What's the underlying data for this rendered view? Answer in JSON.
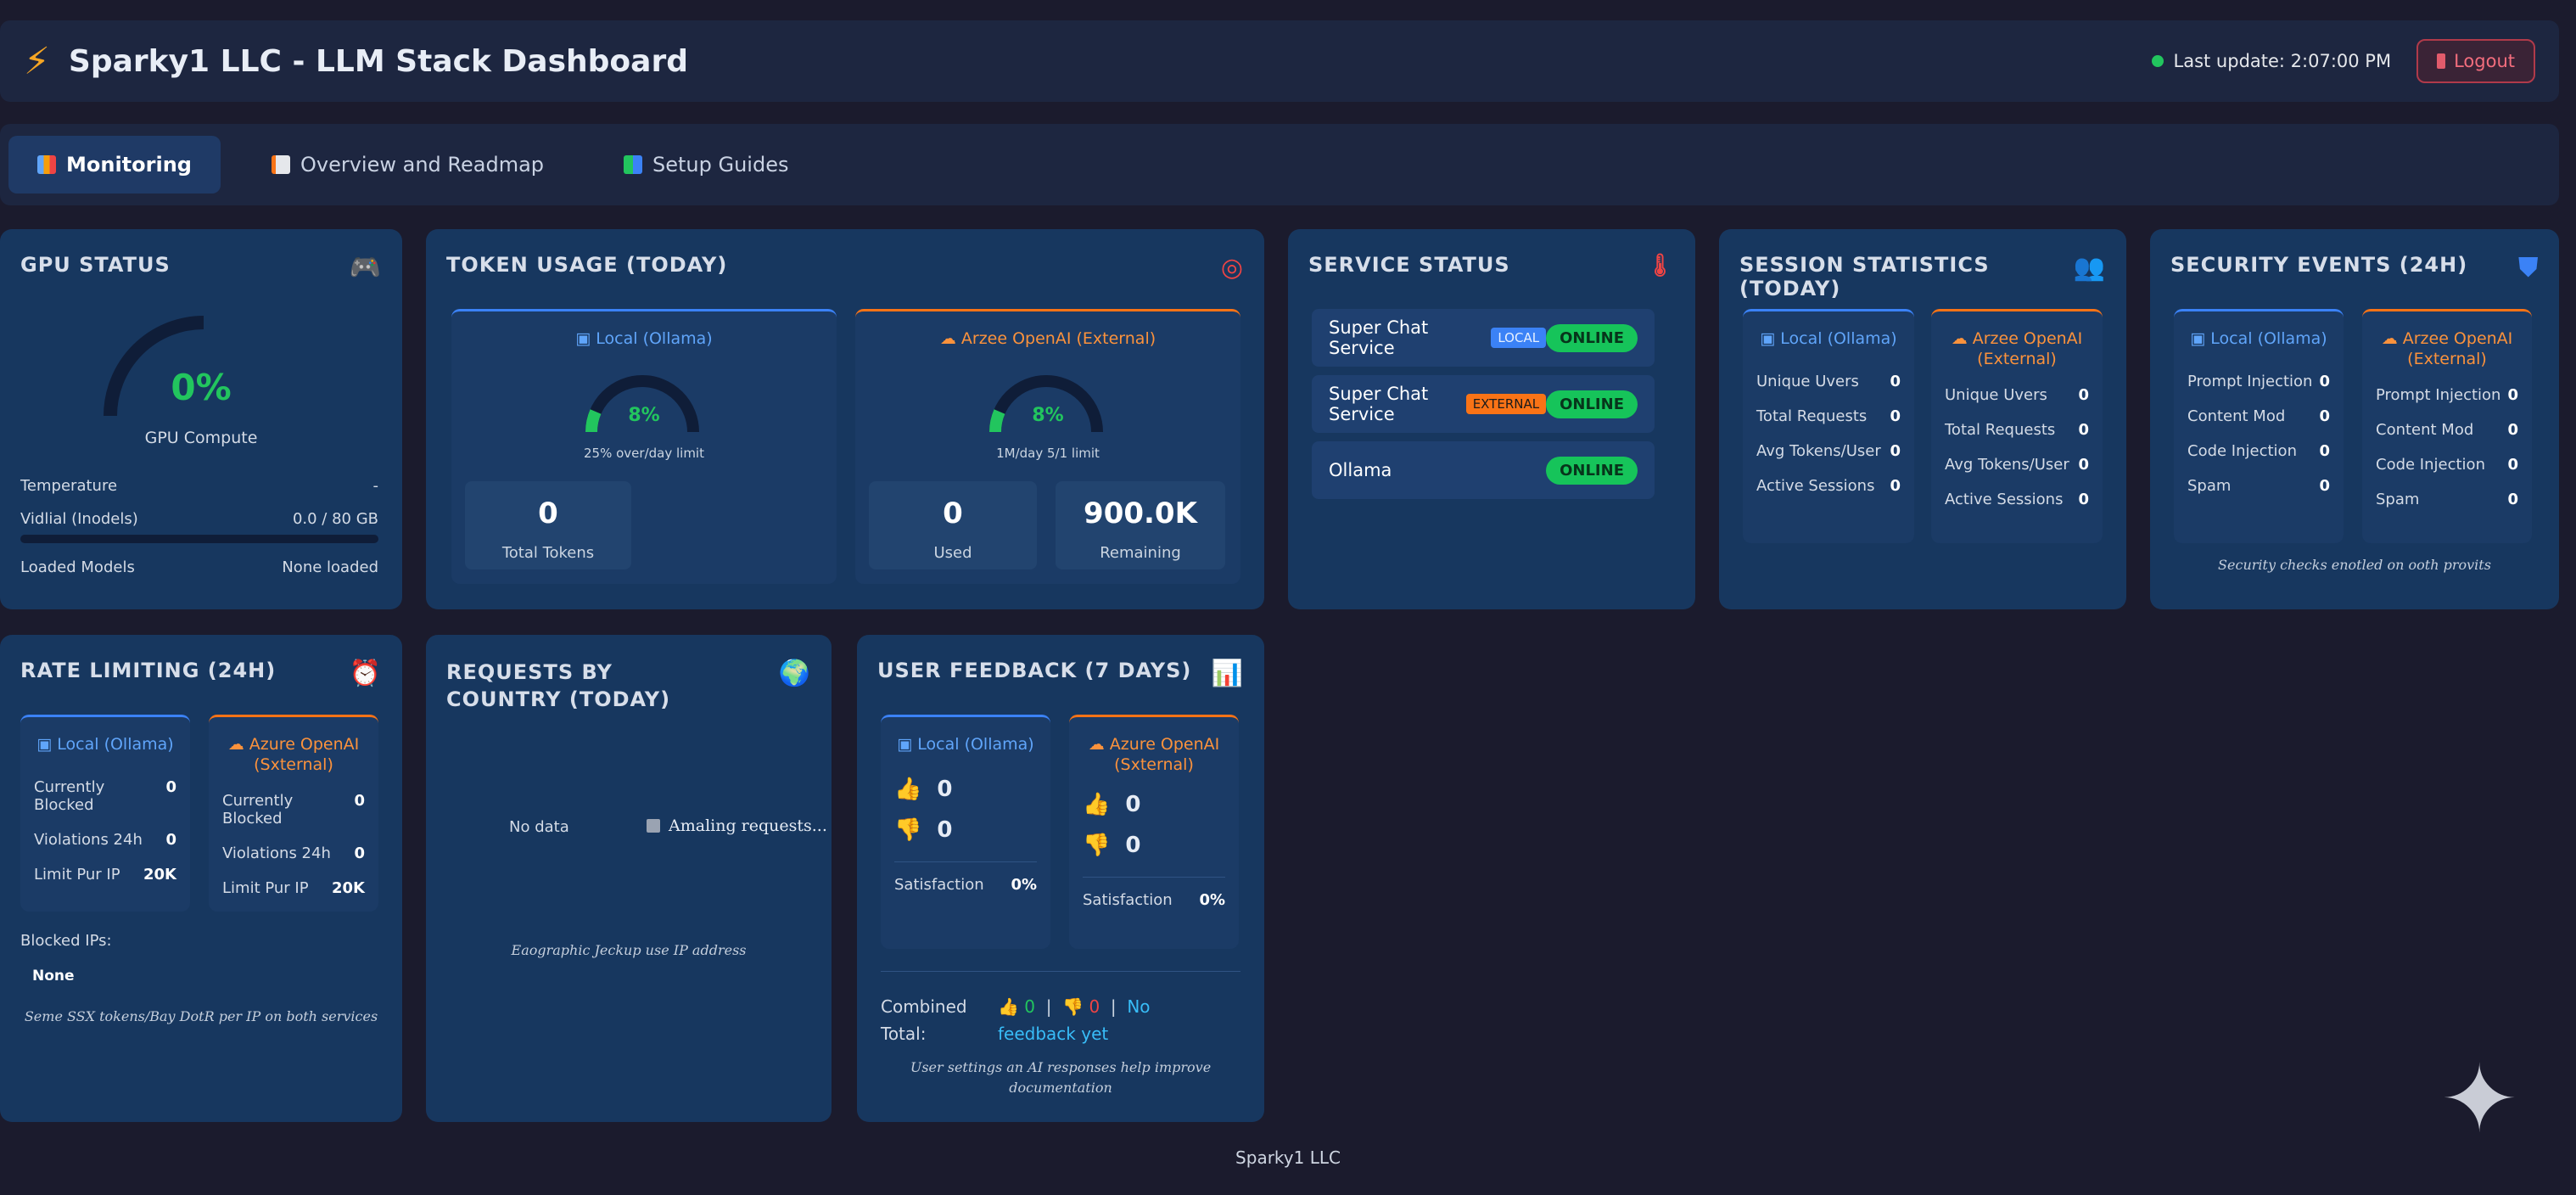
{
  "header": {
    "title": "Sparky1 LLC - LLM Stack Dashboard",
    "last_update": "Last update: 2:07:00 PM",
    "logout_label": "Logout"
  },
  "tabs": [
    {
      "label": "Monitoring",
      "icon": "chart-icon"
    },
    {
      "label": "Overview and Readmap",
      "icon": "document-icon"
    },
    {
      "label": "Setup Guides",
      "icon": "books-icon"
    }
  ],
  "gpu": {
    "title": "GPU STATUS",
    "value": "0%",
    "caption": "GPU Compute",
    "rows": [
      {
        "label": "Temperature",
        "value": "-"
      },
      {
        "label": "Vidlial (Inodels)",
        "value": "0.0 / 80 GB"
      },
      {
        "label": "Loaded Models",
        "value": "None loaded"
      }
    ],
    "vram_fraction": 0.0
  },
  "tokens": {
    "title": "TOKEN USAGE (TODAY)",
    "local": {
      "head": "Local (Ollama)",
      "gauge": "8%",
      "limit": "25% over/day limit",
      "total_value": "0",
      "total_label": "Total Tokens"
    },
    "external": {
      "head": "Arzee OpenAI (External)",
      "gauge": "8%",
      "limit": "1M/day 5/1 limit",
      "used_value": "0",
      "used_label": "Used",
      "remaining_value": "900.0K",
      "remaining_label": "Remaining"
    }
  },
  "service": {
    "title": "SERVICE STATUS",
    "rows": [
      {
        "name": "Super Chat Service",
        "badge": "LOCAL",
        "status": "ONLINE"
      },
      {
        "name": "Super Chat Service",
        "badge": "EXTERNAL",
        "status": "ONLINE"
      },
      {
        "name": "Ollama",
        "badge": "",
        "status": "ONLINE"
      }
    ]
  },
  "session": {
    "title": "SESSION STATISTICS (TODAY)",
    "local": {
      "head": "Local (Ollama)",
      "rows": [
        {
          "label": "Unique Uvers",
          "value": "0"
        },
        {
          "label": "Total Requests",
          "value": "0"
        },
        {
          "label": "Avg Tokens/User",
          "value": "0"
        },
        {
          "label": "Active Sessions",
          "value": "0"
        }
      ]
    },
    "external": {
      "head": "Arzee OpenAI (External)",
      "rows": [
        {
          "label": "Unique Uvers",
          "value": "0"
        },
        {
          "label": "Total Requests",
          "value": "0"
        },
        {
          "label": "Avg Tokens/User",
          "value": "0"
        },
        {
          "label": "Active Sessions",
          "value": "0"
        }
      ]
    }
  },
  "security": {
    "title": "SECURITY EVENTS (24H)",
    "local": {
      "head": "Local (Ollama)",
      "rows": [
        {
          "label": "Prompt Injection",
          "value": "0"
        },
        {
          "label": "Content Mod",
          "value": "0"
        },
        {
          "label": "Code Injection",
          "value": "0"
        },
        {
          "label": "Spam",
          "value": "0"
        }
      ]
    },
    "external": {
      "head": "Arzee OpenAI (External)",
      "rows": [
        {
          "label": "Prompt Injection",
          "value": "0"
        },
        {
          "label": "Content Mod",
          "value": "0"
        },
        {
          "label": "Code Injection",
          "value": "0"
        },
        {
          "label": "Spam",
          "value": "0"
        }
      ]
    },
    "note": "Security checks enotled on ooth provits"
  },
  "rate": {
    "title": "RATE LIMITING (24H)",
    "local": {
      "head": "Local (Ollama)",
      "rows": [
        {
          "label": "Currently Blocked",
          "value": "0"
        },
        {
          "label": "Violations 24h",
          "value": "0"
        },
        {
          "label": "Limit Pur IP",
          "value": "20K"
        }
      ]
    },
    "external": {
      "head": "Azure OpenAI (Sxternal)",
      "rows": [
        {
          "label": "Currently Blocked",
          "value": "0"
        },
        {
          "label": "Violations 24h",
          "value": "0"
        },
        {
          "label": "Limit Pur IP",
          "value": "20K"
        }
      ]
    },
    "blocked_label": "Blocked IPs:",
    "blocked_value": "None",
    "note": "Seme SSX tokens/Bay DotR per IP on both services"
  },
  "country": {
    "title": "REQUESTS BY COUNTRY (TODAY)",
    "no_data": "No data",
    "legend": "Amaling requests...",
    "note": "Eaographic Jeckup use IP address"
  },
  "feedback": {
    "title": "USER FEEDBACK (7 DAYS)",
    "local": {
      "head": "Local (Ollama)",
      "up": "0",
      "down": "0",
      "sat_label": "Satisfaction",
      "sat_value": "0%"
    },
    "external": {
      "head": "Azure OpenAI (Sxternal)",
      "up": "0",
      "down": "0",
      "sat_label": "Satisfaction",
      "sat_value": "0%"
    },
    "combined_label": "Combined Total:",
    "combined_up": "0",
    "combined_down": "0",
    "combined_none": "No feedback yet",
    "note": "User settings an AI responses help improve documentation"
  },
  "footer": "Sparky1 LLC",
  "colors": {
    "background": "#1b1b2d",
    "card": "#17375f",
    "online": "#16c45a",
    "local": "#3b82f6",
    "external": "#f97316",
    "gauge": "#22c55e"
  }
}
